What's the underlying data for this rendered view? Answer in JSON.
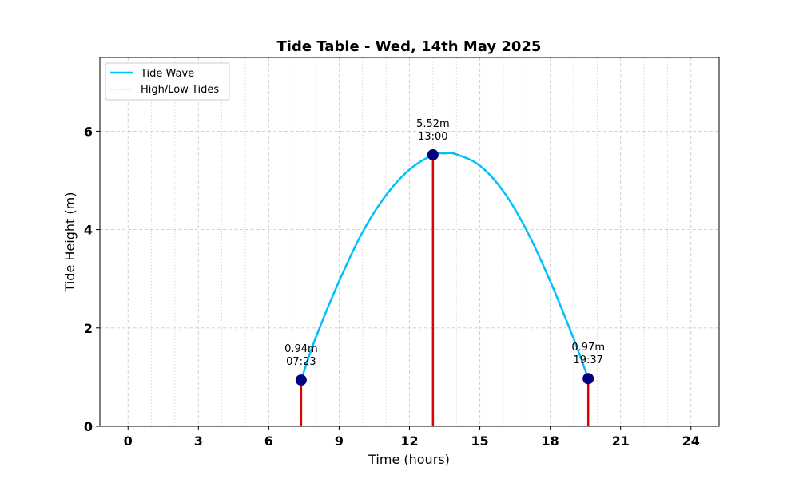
{
  "chart_data": {
    "type": "line",
    "title": "Tide Table - Wed, 14th May 2025",
    "xlabel": "Time (hours)",
    "ylabel": "Tide Height (m)",
    "xlim": [
      -1.2,
      25.2
    ],
    "ylim": [
      0,
      7.5
    ],
    "x_ticks": [
      0,
      3,
      6,
      9,
      12,
      15,
      18,
      21,
      24
    ],
    "y_ticks": [
      0,
      2,
      4,
      6
    ],
    "grid": true,
    "legend_position": "top-left",
    "legend": [
      "Tide Wave",
      "High/Low Tides"
    ],
    "series": [
      {
        "name": "Tide Wave",
        "color": "#00bfff",
        "x": [
          7.38,
          8,
          9,
          10,
          11,
          12,
          13,
          13.5,
          14,
          15,
          16,
          17,
          18,
          19,
          19.62
        ],
        "y": [
          0.94,
          1.8,
          2.95,
          3.95,
          4.7,
          5.22,
          5.52,
          5.55,
          5.53,
          5.3,
          4.78,
          3.98,
          2.95,
          1.78,
          0.97
        ]
      }
    ],
    "tides": [
      {
        "x": 7.38,
        "height": 0.94,
        "height_label": "0.94m",
        "time_label": "07:23"
      },
      {
        "x": 13.0,
        "height": 5.52,
        "height_label": "5.52m",
        "time_label": "13:00"
      },
      {
        "x": 19.62,
        "height": 0.97,
        "height_label": "0.97m",
        "time_label": "19:37"
      }
    ],
    "colors": {
      "wave": "#00bfff",
      "tide_line": "#e00000",
      "tide_marker": "#000080",
      "grid": "#cccccc"
    }
  }
}
